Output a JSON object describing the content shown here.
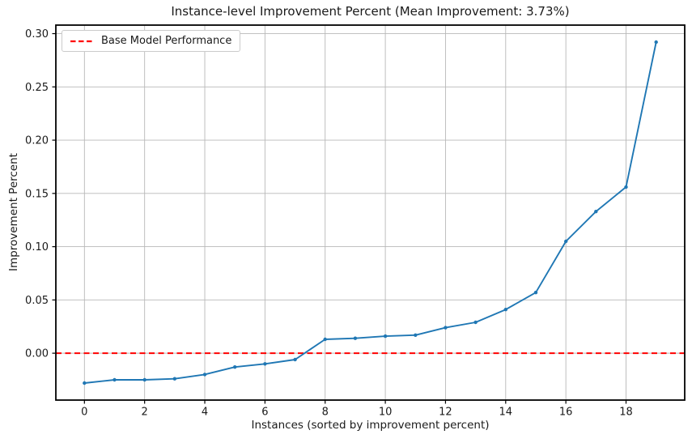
{
  "chart_data": {
    "type": "line",
    "title": "Instance-level Improvement Percent (Mean Improvement: 3.73%)",
    "xlabel": "Instances (sorted by improvement percent)",
    "ylabel": "Improvement Percent",
    "x": [
      0,
      1,
      2,
      3,
      4,
      5,
      6,
      7,
      8,
      9,
      10,
      11,
      12,
      13,
      14,
      15,
      16,
      17,
      18,
      19
    ],
    "values": [
      -0.028,
      -0.025,
      -0.025,
      -0.024,
      -0.02,
      -0.013,
      -0.01,
      -0.006,
      0.013,
      0.014,
      0.016,
      0.017,
      0.024,
      0.029,
      0.041,
      0.057,
      0.105,
      0.133,
      0.156,
      0.292
    ],
    "mean_improvement_percent": "3.73%",
    "series_color": "#1f77b4",
    "baseline": {
      "value": 0.0,
      "label": "Base Model Performance",
      "color": "#ff0000",
      "style": "dashed"
    },
    "xlim": [
      -0.95,
      19.95
    ],
    "ylim": [
      -0.044,
      0.308
    ],
    "xticks": [
      0,
      2,
      4,
      6,
      8,
      10,
      12,
      14,
      16,
      18
    ],
    "xtick_labels": [
      "0",
      "2",
      "4",
      "6",
      "8",
      "10",
      "12",
      "14",
      "16",
      "18"
    ],
    "yticks": [
      0.0,
      0.05,
      0.1,
      0.15,
      0.2,
      0.25,
      0.3
    ],
    "ytick_labels": [
      "0.00",
      "0.05",
      "0.10",
      "0.15",
      "0.20",
      "0.25",
      "0.30"
    ],
    "grid": true,
    "grid_color": "#b8b8b8",
    "spine_color": "#000000",
    "legend_position": "upper-left"
  }
}
